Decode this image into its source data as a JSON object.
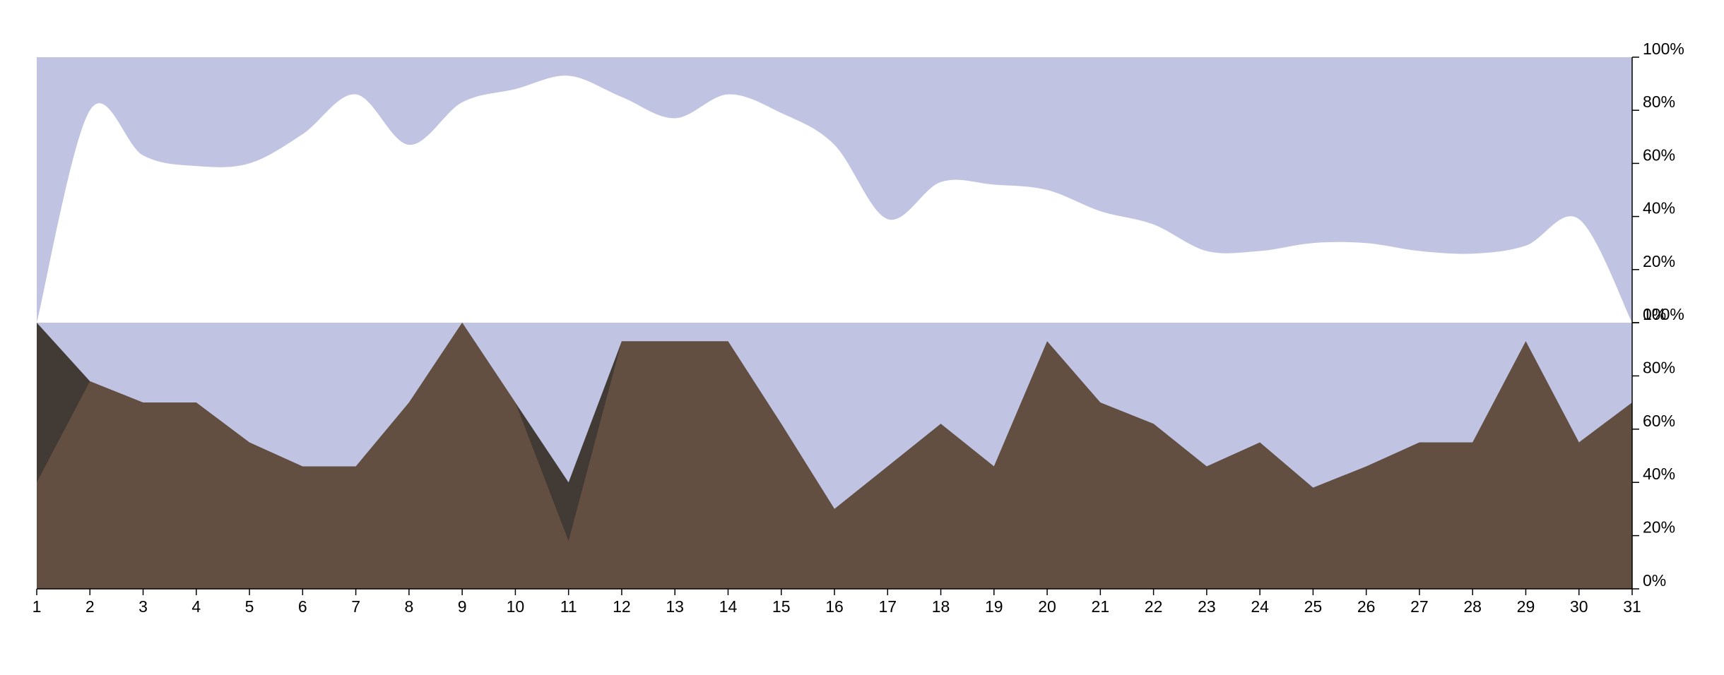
{
  "chart_data": [
    {
      "type": "area",
      "title": "",
      "xlabel": "",
      "ylabel": "",
      "x": [
        1,
        2,
        3,
        4,
        5,
        6,
        7,
        8,
        9,
        10,
        11,
        12,
        13,
        14,
        15,
        16,
        17,
        18,
        19,
        20,
        21,
        22,
        23,
        24,
        25,
        26,
        27,
        28,
        29,
        30,
        31
      ],
      "x_tick_labels": [
        "1",
        "2",
        "3",
        "4",
        "5",
        "6",
        "7",
        "8",
        "9",
        "10",
        "11",
        "12",
        "13",
        "14",
        "15",
        "16",
        "17",
        "18",
        "19",
        "20",
        "21",
        "22",
        "23",
        "24",
        "25",
        "26",
        "27",
        "28",
        "29",
        "30",
        "31"
      ],
      "values": [
        0,
        80,
        63,
        59,
        60,
        71,
        86,
        67,
        83,
        88,
        93,
        85,
        77,
        86,
        79,
        67,
        39,
        53,
        52,
        50,
        42,
        37,
        27,
        27,
        30,
        30,
        27,
        26,
        29,
        39,
        0
      ],
      "ylim": [
        0,
        100
      ],
      "y_ticks": [
        "0%",
        "20%",
        "40%",
        "60%",
        "80%",
        "100%"
      ],
      "background_color": "#c0c4e2",
      "fill_color": "#ffffff",
      "curve": "smooth"
    },
    {
      "type": "area",
      "title": "",
      "xlabel": "",
      "ylabel": "",
      "x": [
        1,
        2,
        3,
        4,
        5,
        6,
        7,
        8,
        9,
        10,
        11,
        12,
        13,
        14,
        15,
        16,
        17,
        18,
        19,
        20,
        21,
        22,
        23,
        24,
        25,
        26,
        27,
        28,
        29,
        30,
        31
      ],
      "x_tick_labels": [
        "1",
        "2",
        "3",
        "4",
        "5",
        "6",
        "7",
        "8",
        "9",
        "10",
        "11",
        "12",
        "13",
        "14",
        "15",
        "16",
        "17",
        "18",
        "19",
        "20",
        "21",
        "22",
        "23",
        "24",
        "25",
        "26",
        "27",
        "28",
        "29",
        "30",
        "31"
      ],
      "series": [
        {
          "values": [
            100,
            78,
            70,
            70,
            55,
            46,
            46,
            70,
            100,
            70,
            40,
            93,
            93,
            93,
            62,
            30,
            46,
            62,
            46,
            93,
            70,
            62,
            46,
            55,
            38,
            46,
            55,
            55,
            93,
            55,
            70
          ],
          "color": "#423a35"
        },
        {
          "values": [
            40,
            78,
            70,
            70,
            55,
            46,
            46,
            70,
            100,
            70,
            18,
            93,
            93,
            93,
            62,
            30,
            46,
            62,
            46,
            93,
            70,
            62,
            46,
            55,
            38,
            46,
            55,
            55,
            93,
            55,
            70
          ],
          "color": "#634f42"
        }
      ],
      "ylim": [
        0,
        100
      ],
      "y_ticks": [
        "0%",
        "20%",
        "40%",
        "60%",
        "80%",
        "100%"
      ],
      "background_color": "#c0c4e2",
      "curve": "sawtooth"
    }
  ]
}
